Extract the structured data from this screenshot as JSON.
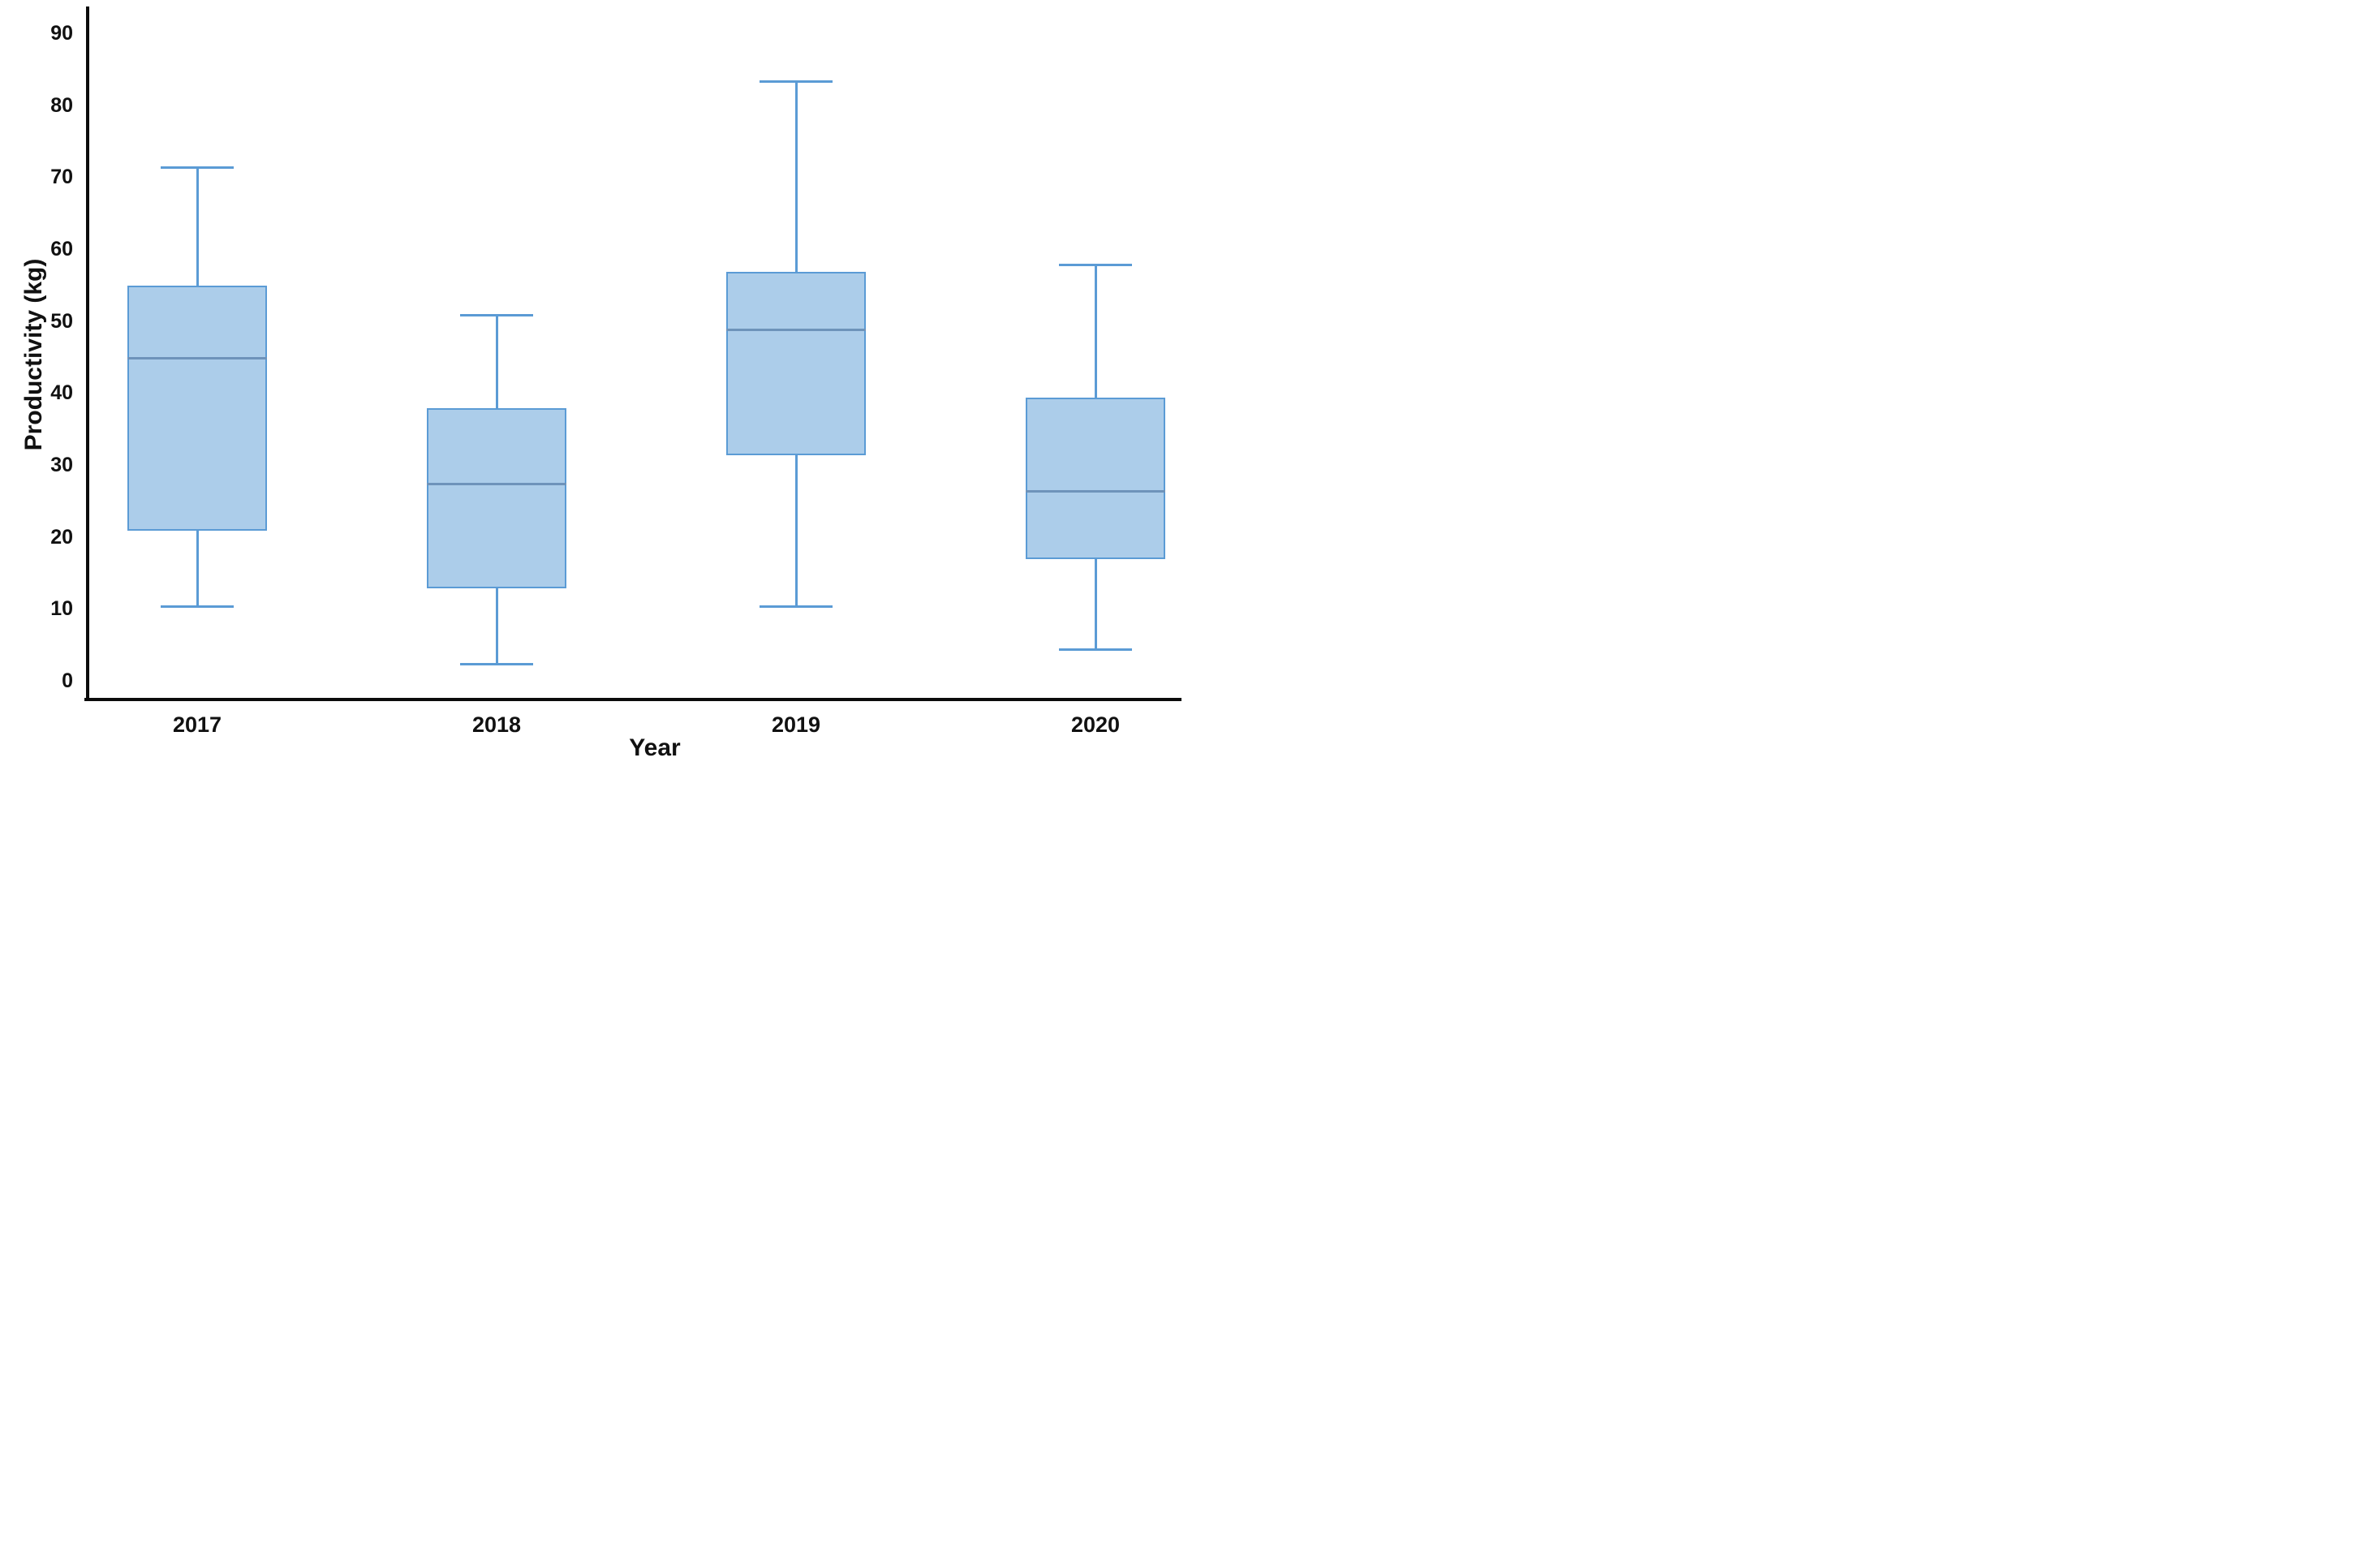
{
  "chart_data": {
    "type": "boxplot",
    "title": "",
    "xlabel": "Year",
    "ylabel": "Productivity (kg)",
    "categories": [
      "2017",
      "2018",
      "2019",
      "2020"
    ],
    "y_ticks": [
      0,
      10,
      20,
      30,
      40,
      50,
      60,
      70,
      80,
      90
    ],
    "ylim": [
      0,
      90
    ],
    "grid": false,
    "legend": "none",
    "series": [
      {
        "category": "2017",
        "min": 10.5,
        "q1": 21,
        "median": 45,
        "q3": 55,
        "max": 71.5
      },
      {
        "category": "2018",
        "min": 2.5,
        "q1": 13,
        "median": 27.5,
        "q3": 38,
        "max": 51
      },
      {
        "category": "2019",
        "min": 10.5,
        "q1": 31.5,
        "median": 49,
        "q3": 57,
        "max": 83.5
      },
      {
        "category": "2020",
        "min": 4.5,
        "q1": 17,
        "median": 26.5,
        "q3": 39.5,
        "max": 58
      }
    ],
    "colors": {
      "box_fill": "#ACCDEA",
      "box_border": "#5B9BD5",
      "median_line": "#6E93BA",
      "whisker": "#5B9BD5",
      "axis": "#0B0B0B",
      "text": "#111111"
    }
  }
}
